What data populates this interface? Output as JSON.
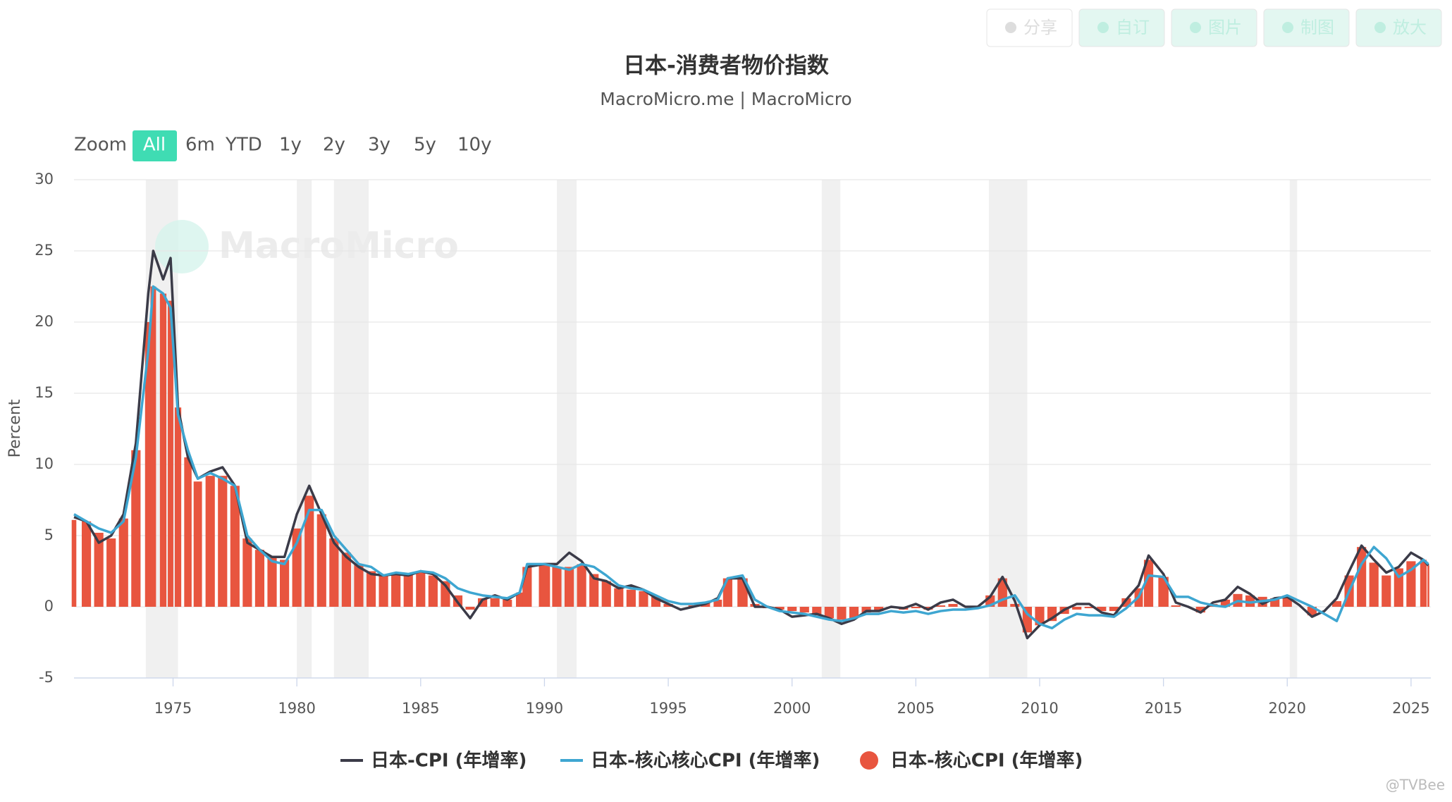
{
  "toolbar": [
    "分享",
    "自订",
    "图片",
    "制图",
    "放大"
  ],
  "zoom": {
    "label": "Zoom",
    "options": [
      "All",
      "6m",
      "YTD",
      "1y",
      "2y",
      "3y",
      "5y",
      "10y"
    ],
    "selected": 0
  },
  "watermarks": [
    "MacroMicro",
    "@TVBee"
  ],
  "chart_data": {
    "type": "line",
    "title": "日本-消费者物价指数",
    "subtitle": "MacroMicro.me | MacroMicro",
    "y_label": "Percent",
    "x": [
      1971.0,
      1971.5,
      1972.0,
      1972.5,
      1973.0,
      1973.5,
      1974.0,
      1974.2,
      1974.6,
      1974.9,
      1975.2,
      1975.6,
      1976.0,
      1976.5,
      1977.0,
      1977.5,
      1978.0,
      1978.5,
      1979.0,
      1979.5,
      1980.0,
      1980.5,
      1981.0,
      1981.5,
      1982.0,
      1982.5,
      1983.0,
      1983.5,
      1984.0,
      1984.5,
      1985.0,
      1985.5,
      1986.0,
      1986.5,
      1987.0,
      1987.5,
      1988.0,
      1988.5,
      1989.0,
      1989.3,
      1990.0,
      1990.5,
      1991.0,
      1991.5,
      1992.0,
      1992.5,
      1993.0,
      1993.5,
      1994.0,
      1994.5,
      1995.0,
      1995.5,
      1996.0,
      1996.5,
      1997.0,
      1997.4,
      1998.0,
      1998.5,
      1999.0,
      1999.5,
      2000.0,
      2000.5,
      2001.0,
      2001.5,
      2002.0,
      2002.5,
      2003.0,
      2003.5,
      2004.0,
      2004.5,
      2005.0,
      2005.5,
      2006.0,
      2006.5,
      2007.0,
      2007.5,
      2008.0,
      2008.5,
      2009.0,
      2009.5,
      2010.0,
      2010.5,
      2011.0,
      2011.5,
      2012.0,
      2012.5,
      2013.0,
      2013.5,
      2014.0,
      2014.4,
      2015.0,
      2015.5,
      2016.0,
      2016.5,
      2017.0,
      2017.5,
      2018.0,
      2018.5,
      2019.0,
      2019.5,
      2020.0,
      2020.5,
      2021.0,
      2021.5,
      2022.0,
      2022.5,
      2023.0,
      2023.5,
      2024.0,
      2024.5,
      2025.0,
      2025.5,
      2025.7
    ],
    "series": [
      {
        "name": "日本-CPI (年增率)",
        "type": "line",
        "color": "#3b3b48",
        "values": [
          6.3,
          6.0,
          4.5,
          5.0,
          6.5,
          11.5,
          22,
          25,
          23,
          24.5,
          14,
          10.5,
          9,
          9.5,
          9.8,
          8.5,
          4.5,
          4,
          3.5,
          3.5,
          6.5,
          8.5,
          6.5,
          4.5,
          3.5,
          2.8,
          2.3,
          2.2,
          2.3,
          2.2,
          2.5,
          2.3,
          1.5,
          0.3,
          -0.8,
          0.5,
          0.8,
          0.5,
          1.0,
          2.8,
          3.0,
          3.0,
          3.8,
          3.2,
          2.0,
          1.8,
          1.3,
          1.5,
          1.2,
          0.6,
          0.2,
          -0.2,
          0.0,
          0.2,
          0.6,
          2.0,
          2.0,
          0.0,
          0.0,
          -0.2,
          -0.7,
          -0.6,
          -0.5,
          -0.8,
          -1.2,
          -0.9,
          -0.3,
          -0.3,
          0.0,
          -0.1,
          0.2,
          -0.2,
          0.3,
          0.5,
          0.0,
          0.0,
          0.7,
          2.1,
          0.4,
          -2.2,
          -1.3,
          -0.8,
          -0.2,
          0.2,
          0.2,
          -0.4,
          -0.6,
          0.5,
          1.5,
          3.6,
          2.3,
          0.3,
          0.0,
          -0.4,
          0.3,
          0.5,
          1.4,
          0.9,
          0.2,
          0.6,
          0.7,
          0.1,
          -0.7,
          -0.3,
          0.6,
          2.5,
          4.3,
          3.3,
          2.4,
          2.8,
          3.8,
          3.3,
          2.9
        ]
      },
      {
        "name": "日本-核心核心CPI (年增率)",
        "type": "line",
        "color": "#3ea6d1",
        "values": [
          6.5,
          6.0,
          5.5,
          5.2,
          6.0,
          10.5,
          18,
          22.5,
          22,
          21,
          13.5,
          11,
          9,
          9.4,
          9,
          8.5,
          5,
          4,
          3.2,
          3.0,
          4.5,
          6.8,
          6.8,
          5,
          4,
          3,
          2.8,
          2.2,
          2.4,
          2.3,
          2.5,
          2.4,
          2,
          1.3,
          1.0,
          0.8,
          0.7,
          0.6,
          1.0,
          3.0,
          3.0,
          2.8,
          2.6,
          3.0,
          2.8,
          2.2,
          1.5,
          1.3,
          1.2,
          0.8,
          0.4,
          0.2,
          0.2,
          0.3,
          0.5,
          2.0,
          2.2,
          0.5,
          0.0,
          -0.3,
          -0.4,
          -0.5,
          -0.7,
          -0.9,
          -1.0,
          -0.8,
          -0.5,
          -0.5,
          -0.3,
          -0.4,
          -0.3,
          -0.5,
          -0.3,
          -0.2,
          -0.2,
          -0.1,
          0.1,
          0.5,
          0.8,
          -0.5,
          -1.2,
          -1.5,
          -0.9,
          -0.5,
          -0.6,
          -0.6,
          -0.7,
          -0.1,
          0.7,
          2.2,
          2.1,
          0.7,
          0.7,
          0.3,
          0.1,
          0.0,
          0.4,
          0.3,
          0.4,
          0.5,
          0.8,
          0.4,
          0.0,
          -0.5,
          -1.0,
          1.1,
          3.0,
          4.2,
          3.4,
          2.1,
          2.6,
          3.3,
          3.0
        ]
      },
      {
        "name": "日本-核心CPI (年增率)",
        "type": "bar",
        "color": "#e8553f",
        "values": [
          6.1,
          6.0,
          5.2,
          4.8,
          6.2,
          11.0,
          20,
          22.5,
          22,
          21.5,
          14,
          10.5,
          8.8,
          9.2,
          9.2,
          8.5,
          4.8,
          4,
          3.5,
          3.3,
          5.5,
          7.8,
          6.5,
          4.8,
          3.8,
          3,
          2.5,
          2.2,
          2.3,
          2.3,
          2.4,
          2.2,
          1.8,
          0.8,
          -0.2,
          0.6,
          0.6,
          0.5,
          1.0,
          2.8,
          3.0,
          2.8,
          2.8,
          3.0,
          2.3,
          1.8,
          1.3,
          1.2,
          1.1,
          0.7,
          0.2,
          0.0,
          0.1,
          0.3,
          0.5,
          2.0,
          2.0,
          0.2,
          -0.1,
          -0.2,
          -0.3,
          -0.4,
          -0.6,
          -0.8,
          -0.9,
          -0.8,
          -0.4,
          -0.3,
          -0.1,
          -0.2,
          -0.1,
          -0.2,
          0.1,
          0.2,
          0.0,
          0.0,
          0.8,
          2.0,
          0.2,
          -1.8,
          -1.3,
          -1.0,
          -0.5,
          -0.2,
          -0.1,
          -0.3,
          -0.3,
          0.6,
          1.3,
          3.3,
          2.1,
          0.1,
          0.0,
          -0.4,
          0.2,
          0.5,
          0.9,
          0.8,
          0.7,
          0.6,
          0.7,
          0.0,
          -0.6,
          0.0,
          0.4,
          2.2,
          4.2,
          3.1,
          2.2,
          2.7,
          3.2,
          3.3,
          2.9
        ]
      }
    ],
    "recessions": [
      [
        1973.9,
        1975.2
      ],
      [
        1980.0,
        1980.6
      ],
      [
        1981.5,
        1982.9
      ],
      [
        1990.5,
        1991.3
      ],
      [
        2001.2,
        2001.95
      ],
      [
        2007.95,
        2009.5
      ],
      [
        2020.1,
        2020.4
      ]
    ],
    "recession_color": "#f0f0f0",
    "xlim": [
      1971.0,
      2025.8
    ],
    "xticks": [
      1975,
      1980,
      1985,
      1990,
      1995,
      2000,
      2005,
      2010,
      2015,
      2020,
      2025
    ],
    "ylim": [
      -5,
      30
    ],
    "yticks": [
      -5,
      0,
      5,
      10,
      15,
      20,
      25,
      30
    ],
    "grid": true
  }
}
